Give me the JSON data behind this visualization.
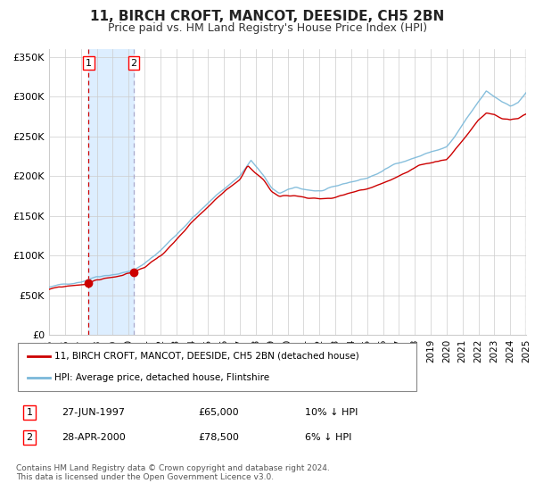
{
  "title": "11, BIRCH CROFT, MANCOT, DEESIDE, CH5 2BN",
  "subtitle": "Price paid vs. HM Land Registry's House Price Index (HPI)",
  "legend_line1": "11, BIRCH CROFT, MANCOT, DEESIDE, CH5 2BN (detached house)",
  "legend_line2": "HPI: Average price, detached house, Flintshire",
  "transaction1_label": "1",
  "transaction1_date": "27-JUN-1997",
  "transaction1_price": 65000,
  "transaction1_note": "10% ↓ HPI",
  "transaction2_label": "2",
  "transaction2_date": "28-APR-2000",
  "transaction2_price": 78500,
  "transaction2_note": "6% ↓ HPI",
  "transaction1_x": 1997.49,
  "transaction2_x": 2000.33,
  "hpi_color": "#7ab8d9",
  "price_color": "#cc0000",
  "vline1_color": "#cc0000",
  "vline2_color": "#aaaacc",
  "shade_color": "#ddeeff",
  "ylabel_ticks": [
    "£0",
    "£50K",
    "£100K",
    "£150K",
    "£200K",
    "£250K",
    "£300K",
    "£350K"
  ],
  "ytick_vals": [
    0,
    50000,
    100000,
    150000,
    200000,
    250000,
    300000,
    350000
  ],
  "footnote": "Contains HM Land Registry data © Crown copyright and database right 2024.\nThis data is licensed under the Open Government Licence v3.0.",
  "background_color": "#ffffff",
  "grid_color": "#cccccc",
  "hpi_anchors_t": [
    1995.0,
    1996.0,
    1997.0,
    1997.5,
    1998.0,
    1999.0,
    2000.0,
    2000.33,
    2001.0,
    2002.0,
    2003.0,
    2004.0,
    2005.0,
    2006.0,
    2007.0,
    2007.7,
    2008.5,
    2009.0,
    2009.5,
    2010.0,
    2010.5,
    2011.0,
    2012.0,
    2013.0,
    2014.0,
    2015.0,
    2016.0,
    2017.0,
    2018.0,
    2019.0,
    2020.0,
    2020.5,
    2021.0,
    2021.5,
    2022.0,
    2022.5,
    2023.0,
    2023.5,
    2024.0,
    2024.5,
    2025.0
  ],
  "hpi_anchors_v": [
    60000,
    63000,
    68000,
    72000,
    76000,
    80000,
    84000,
    86000,
    93000,
    110000,
    130000,
    152000,
    170000,
    188000,
    205000,
    225000,
    205000,
    188000,
    182000,
    185000,
    188000,
    186000,
    184000,
    187000,
    193000,
    198000,
    207000,
    218000,
    225000,
    232000,
    238000,
    250000,
    265000,
    278000,
    292000,
    305000,
    298000,
    292000,
    288000,
    292000,
    305000
  ],
  "price_anchors_t": [
    1995.0,
    1996.0,
    1997.0,
    1997.49,
    1998.0,
    1999.0,
    2000.0,
    2000.33,
    2001.0,
    2002.0,
    2003.0,
    2004.0,
    2005.0,
    2006.0,
    2007.0,
    2007.5,
    2008.5,
    2009.0,
    2009.5,
    2010.0,
    2011.0,
    2012.0,
    2013.0,
    2014.0,
    2015.0,
    2016.0,
    2017.0,
    2018.0,
    2019.0,
    2020.0,
    2021.0,
    2022.0,
    2022.5,
    2023.0,
    2023.5,
    2024.0,
    2024.5,
    2025.0
  ],
  "price_anchors_v": [
    57000,
    60000,
    63000,
    65000,
    69000,
    73000,
    77000,
    78500,
    85000,
    100000,
    120000,
    140000,
    158000,
    175000,
    192000,
    210000,
    193000,
    178000,
    172000,
    175000,
    175000,
    173000,
    175000,
    180000,
    185000,
    193000,
    202000,
    210000,
    215000,
    220000,
    245000,
    272000,
    280000,
    278000,
    272000,
    270000,
    272000,
    278000
  ]
}
